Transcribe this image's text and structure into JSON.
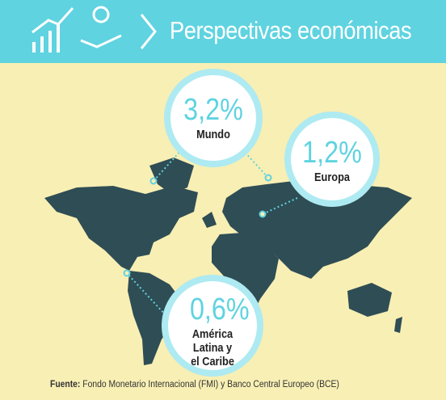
{
  "header": {
    "title": "Perspectivas económicas"
  },
  "callouts": [
    {
      "value": "3,2%",
      "label": "Mundo"
    },
    {
      "value": "1,2%",
      "label": "Europa"
    },
    {
      "value": "0,6%",
      "label": "América Latina y el Caribe"
    }
  ],
  "source": {
    "label": "Fuente:",
    "text": "Fondo Monetario Internacional (FMI) y Banco Central Europeo (BCE)"
  }
}
